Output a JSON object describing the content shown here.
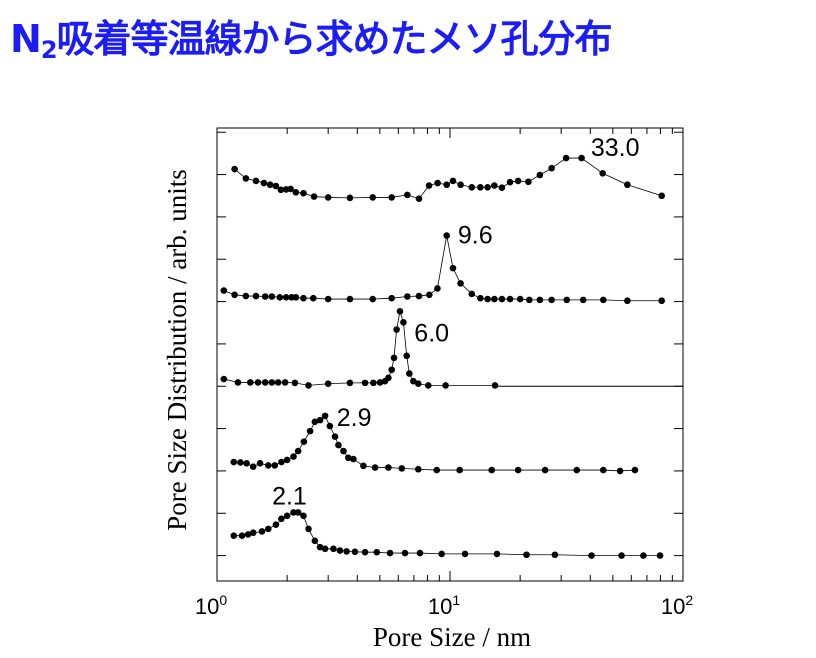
{
  "title": {
    "main": "N",
    "sub": "2",
    "rest": "吸着等温線から求めたメソ孔分布",
    "color": "#1c1cf5"
  },
  "chart_data": {
    "type": "scatter",
    "title": "N2吸着等温線から求めたメソ孔分布",
    "xlabel": "Pore Size / nm",
    "ylabel": "Pore Size Distribution / arb. units",
    "xscale": "log",
    "xlim": [
      1,
      100
    ],
    "ylim": [
      -0.6,
      10.1
    ],
    "yticks": [
      0,
      1,
      2,
      3,
      4,
      5,
      6,
      7,
      8,
      9,
      10
    ],
    "xtick_labels": [
      {
        "base": "10",
        "exp": "0",
        "value": 1
      },
      {
        "base": "10",
        "exp": "1",
        "value": 10
      },
      {
        "base": "10",
        "exp": "2",
        "value": 100
      }
    ],
    "grid": false,
    "legend": "none",
    "markers": "filled circles connected by thin lines",
    "series": [
      {
        "peak_label": "2.1",
        "x": [
          1.18,
          1.28,
          1.36,
          1.43,
          1.56,
          1.66,
          1.79,
          1.89,
          2.0,
          2.13,
          2.23,
          2.35,
          2.47,
          2.63,
          2.77,
          2.91,
          3.16,
          3.37,
          3.6,
          3.91,
          4.32,
          4.85,
          5.53,
          6.41,
          7.43,
          9.21,
          11.6,
          15.9,
          21.3,
          28.2,
          40.5,
          54.5,
          67.6,
          79.7
        ],
        "y": [
          0.47,
          0.47,
          0.5,
          0.54,
          0.57,
          0.63,
          0.73,
          0.87,
          0.94,
          1.02,
          1.02,
          0.94,
          0.63,
          0.35,
          0.2,
          0.16,
          0.16,
          0.12,
          0.1,
          0.09,
          0.08,
          0.08,
          0.06,
          0.06,
          0.06,
          0.04,
          0.04,
          0.04,
          0.02,
          0.02,
          0.0,
          0.0,
          0.0,
          0.0
        ]
      },
      {
        "peak_label": "2.9",
        "x": [
          1.18,
          1.26,
          1.34,
          1.43,
          1.53,
          1.66,
          1.77,
          1.89,
          2.0,
          2.13,
          2.23,
          2.36,
          2.51,
          2.63,
          2.77,
          2.91,
          3.05,
          3.21,
          3.32,
          3.49,
          3.66,
          3.85,
          4.25,
          4.77,
          5.44,
          6.21,
          7.31,
          8.77,
          11.0,
          15.1,
          19.6,
          25.6,
          35.0,
          45.5,
          53.7,
          62.2
        ],
        "y": [
          2.21,
          2.2,
          2.18,
          2.1,
          2.18,
          2.13,
          2.13,
          2.21,
          2.26,
          2.34,
          2.47,
          2.69,
          2.94,
          3.16,
          3.2,
          3.3,
          3.06,
          2.81,
          2.61,
          2.47,
          2.31,
          2.28,
          2.12,
          2.08,
          2.08,
          2.06,
          2.04,
          2.02,
          2.02,
          2.02,
          2.02,
          2.02,
          2.02,
          2.02,
          2.0,
          2.02
        ]
      },
      {
        "peak_label": "6.0",
        "x": [
          1.07,
          1.23,
          1.39,
          1.5,
          1.61,
          1.72,
          1.83,
          1.96,
          2.16,
          2.47,
          3.0,
          3.72,
          4.32,
          4.69,
          5.01,
          5.26,
          5.44,
          5.62,
          5.75,
          5.9,
          6.1,
          6.31,
          6.52,
          6.69,
          6.96,
          7.31,
          8.07,
          9.58,
          15.6
        ],
        "y": [
          4.17,
          4.09,
          4.09,
          4.09,
          4.09,
          4.09,
          4.09,
          4.09,
          4.08,
          4.02,
          4.06,
          4.08,
          4.08,
          4.08,
          4.09,
          4.12,
          4.2,
          4.39,
          4.67,
          5.34,
          5.77,
          5.51,
          4.72,
          4.3,
          4.12,
          4.06,
          4.02,
          4.02,
          4.02
        ]
      },
      {
        "peak_label": "9.6",
        "x": [
          1.07,
          1.19,
          1.33,
          1.47,
          1.61,
          1.72,
          1.86,
          1.98,
          2.09,
          2.18,
          2.35,
          2.59,
          3.0,
          3.72,
          4.66,
          5.62,
          6.56,
          7.36,
          8.15,
          8.83,
          9.68,
          10.3,
          11.1,
          12.4,
          13.5,
          14.5,
          15.5,
          16.7,
          18.1,
          20.0,
          21.9,
          24.3,
          27.3,
          31.7,
          37.3,
          45.5,
          57.7,
          81.0
        ],
        "y": [
          6.26,
          6.16,
          6.13,
          6.13,
          6.12,
          6.12,
          6.1,
          6.1,
          6.1,
          6.1,
          6.08,
          6.08,
          6.06,
          6.06,
          6.06,
          6.08,
          6.12,
          6.13,
          6.16,
          6.31,
          7.56,
          6.79,
          6.43,
          6.18,
          6.08,
          6.06,
          6.06,
          6.06,
          6.06,
          6.06,
          6.04,
          6.04,
          6.04,
          6.04,
          6.04,
          6.04,
          6.02,
          6.02
        ]
      },
      {
        "peak_label": "33.0",
        "x": [
          1.19,
          1.33,
          1.47,
          1.59,
          1.69,
          1.79,
          1.88,
          1.98,
          2.07,
          2.18,
          2.35,
          2.61,
          3.0,
          3.72,
          4.66,
          5.62,
          6.56,
          7.36,
          8.13,
          8.85,
          9.68,
          10.3,
          11.1,
          12.4,
          13.5,
          14.5,
          15.5,
          16.7,
          18.1,
          19.6,
          21.7,
          24.3,
          27.3,
          31.5,
          36.7,
          45.2,
          57.7,
          81.0
        ],
        "y": [
          9.13,
          8.91,
          8.85,
          8.8,
          8.76,
          8.73,
          8.64,
          8.65,
          8.66,
          8.58,
          8.56,
          8.48,
          8.46,
          8.45,
          8.46,
          8.46,
          8.52,
          8.43,
          8.74,
          8.8,
          8.76,
          8.85,
          8.76,
          8.7,
          8.7,
          8.7,
          8.74,
          8.69,
          8.82,
          8.85,
          8.83,
          8.99,
          9.15,
          9.39,
          9.39,
          9.03,
          8.76,
          8.5
        ]
      }
    ],
    "annotations": [
      {
        "text": "2.1",
        "x": 2.1,
        "y": 1.02
      },
      {
        "text": "2.9",
        "x": 2.9,
        "y": 3.3
      },
      {
        "text": "6.0",
        "x": 6.0,
        "y": 5.77
      },
      {
        "text": "9.6",
        "x": 9.6,
        "y": 7.56
      },
      {
        "text": "33.0",
        "x": 33.0,
        "y": 9.39
      }
    ],
    "reference_lines": [
      {
        "y": 4.0,
        "from_x": 15.6,
        "to_x": 100
      }
    ]
  }
}
